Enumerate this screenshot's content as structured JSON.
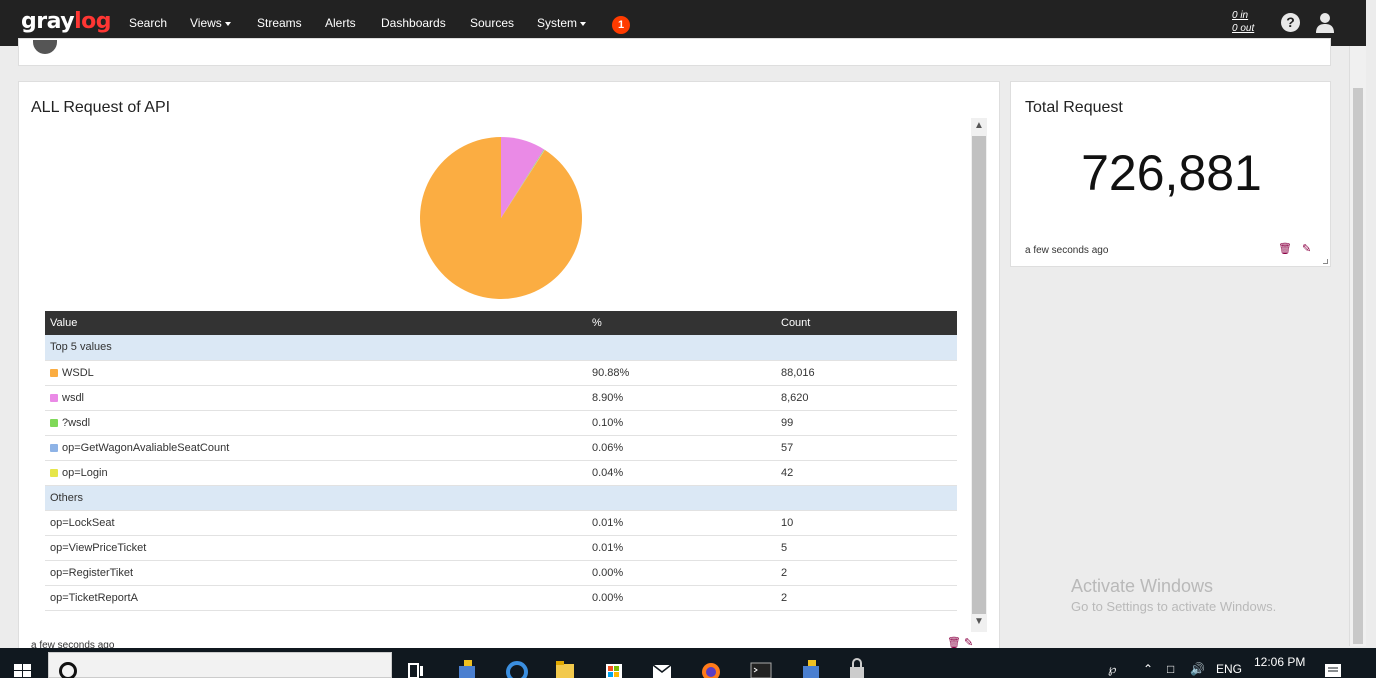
{
  "navbar": {
    "logo_gray": "gray",
    "logo_log": "log",
    "items": {
      "search": "Search",
      "views": "Views",
      "streams": "Streams",
      "alerts": "Alerts",
      "dashboards": "Dashboards",
      "sources": "Sources",
      "system": "System"
    },
    "notification_count": "1",
    "throughput_in": "0 in",
    "throughput_out": "0 out",
    "help": "?"
  },
  "pie_widget": {
    "title": "ALL Request of API",
    "footer": "a few seconds ago"
  },
  "chart_data": {
    "type": "pie",
    "title": "ALL Request of API",
    "slices": [
      {
        "label": "WSDL",
        "value": 88016,
        "percent": 90.88,
        "color": "#fbad42"
      },
      {
        "label": "wsdl",
        "value": 8620,
        "percent": 8.9,
        "color": "#ea8ae6"
      },
      {
        "label": "?wsdl",
        "value": 99,
        "percent": 0.1,
        "color": "#7fd858"
      },
      {
        "label": "op=GetWagonAvaliableSeatCount",
        "value": 57,
        "percent": 0.06,
        "color": "#8eb3e6"
      },
      {
        "label": "op=Login",
        "value": 42,
        "percent": 0.04,
        "color": "#e6e64a"
      }
    ]
  },
  "table": {
    "headers": {
      "value": "Value",
      "percent": "%",
      "count": "Count"
    },
    "group_top": "Top 5 values",
    "group_others": "Others",
    "top_rows": [
      {
        "value": "WSDL",
        "percent": "90.88%",
        "count": "88,016",
        "color": "#fbad42"
      },
      {
        "value": "wsdl",
        "percent": "8.90%",
        "count": "8,620",
        "color": "#ea8ae6"
      },
      {
        "value": "?wsdl",
        "percent": "0.10%",
        "count": "99",
        "color": "#7fd858"
      },
      {
        "value": "op=GetWagonAvaliableSeatCount",
        "percent": "0.06%",
        "count": "57",
        "color": "#8eb3e6"
      },
      {
        "value": "op=Login",
        "percent": "0.04%",
        "count": "42",
        "color": "#e6e64a"
      }
    ],
    "other_rows": [
      {
        "value": "op=LockSeat",
        "percent": "0.01%",
        "count": "10"
      },
      {
        "value": "op=ViewPriceTicket",
        "percent": "0.01%",
        "count": "5"
      },
      {
        "value": "op=RegisterTiket",
        "percent": "0.00%",
        "count": "2"
      },
      {
        "value": "op=TicketReportA",
        "percent": "0.00%",
        "count": "2"
      }
    ]
  },
  "count_widget": {
    "title": "Total Request",
    "value": "726,881",
    "footer": "a few seconds ago"
  },
  "watermark": {
    "line1": "Activate Windows",
    "line2": "Go to Settings to activate Windows."
  },
  "taskbar": {
    "language": "ENG",
    "time": "12:06 PM"
  }
}
